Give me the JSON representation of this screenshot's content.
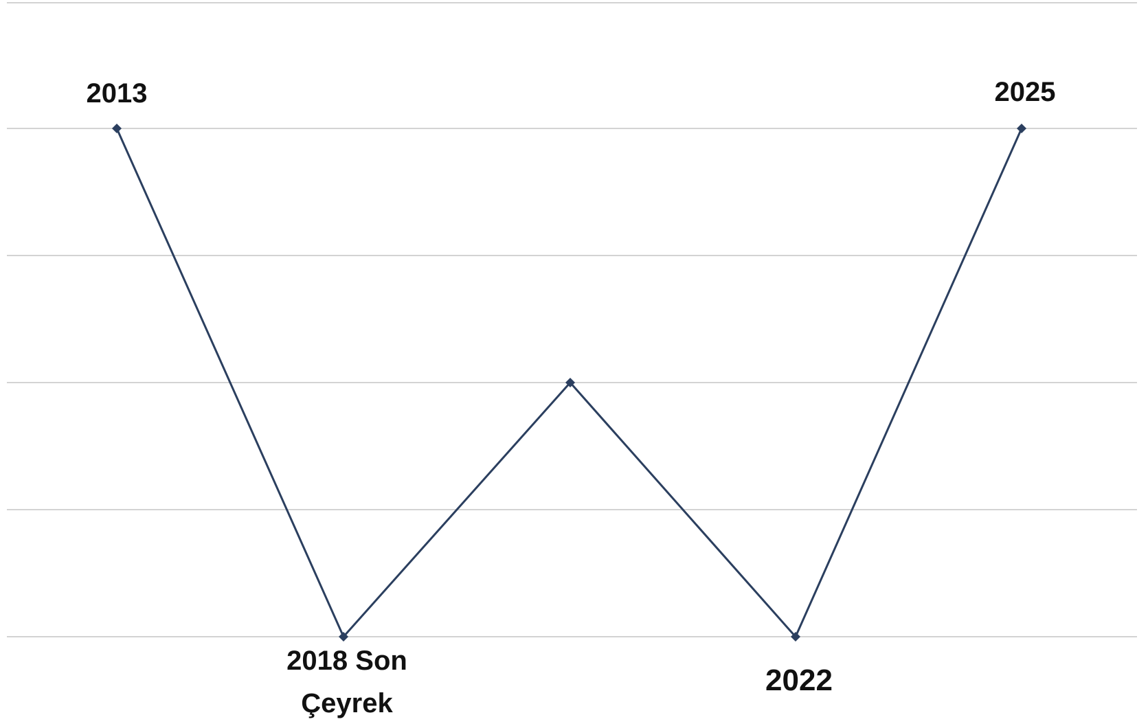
{
  "chart_data": {
    "type": "line",
    "title": "",
    "xlabel": "",
    "ylabel": "",
    "grid": true,
    "ylim": [
      0,
      4
    ],
    "gridline_values": [
      0,
      1,
      2,
      3,
      4,
      5
    ],
    "series": [
      {
        "color": "#2b3f5f",
        "points": [
          {
            "label": "2013",
            "y": 4
          },
          {
            "label": "2018 Son Çeyrek",
            "y": 0
          },
          {
            "label": "",
            "y": 2
          },
          {
            "label": "2022",
            "y": 0
          },
          {
            "label": "2025",
            "y": 4
          }
        ]
      }
    ]
  }
}
